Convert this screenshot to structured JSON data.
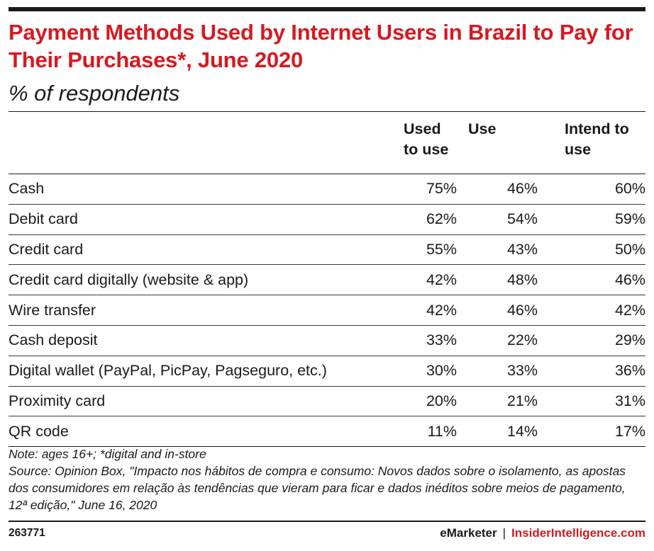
{
  "header": {
    "title": "Payment Methods Used by Internet Users in Brazil to Pay for Their Purchases*, June 2020",
    "subtitle": "% of respondents"
  },
  "chart_data": {
    "type": "table",
    "title": "Payment Methods Used by Internet Users in Brazil to Pay for Their Purchases*, June 2020",
    "subtitle": "% of respondents",
    "columns": [
      "Used to use",
      "Use",
      "Intend to use"
    ],
    "rows": [
      {
        "label": "Cash",
        "values": [
          "75%",
          "46%",
          "60%"
        ]
      },
      {
        "label": "Debit card",
        "values": [
          "62%",
          "54%",
          "59%"
        ]
      },
      {
        "label": "Credit card",
        "values": [
          "55%",
          "43%",
          "50%"
        ]
      },
      {
        "label": "Credit card digitally (website & app)",
        "values": [
          "42%",
          "48%",
          "46%"
        ]
      },
      {
        "label": "Wire transfer",
        "values": [
          "42%",
          "46%",
          "42%"
        ]
      },
      {
        "label": "Cash deposit",
        "values": [
          "33%",
          "22%",
          "29%"
        ]
      },
      {
        "label": "Digital wallet (PayPal, PicPay, Pagseguro, etc.)",
        "values": [
          "30%",
          "33%",
          "36%"
        ]
      },
      {
        "label": "Proximity card",
        "values": [
          "20%",
          "21%",
          "31%"
        ]
      },
      {
        "label": "QR code",
        "values": [
          "11%",
          "14%",
          "17%"
        ]
      }
    ]
  },
  "notes": {
    "note": "Note: ages 16+; *digital and in-store",
    "source": "Source: Opinion Box, \"Impacto nos hábitos de compra e consumo: Novos dados sobre o isolamento, as apostas dos consumidores em relação às tendências que vieram para ficar e dados inéditos sobre meios de pagamento, 12ª edição,\" June 16, 2020"
  },
  "footer": {
    "chart_id": "263771",
    "brand": "eMarketer",
    "separator": "|",
    "brand_site": "InsiderIntelligence.com"
  },
  "colors": {
    "accent": "#d71920",
    "text": "#1a1a1a"
  }
}
